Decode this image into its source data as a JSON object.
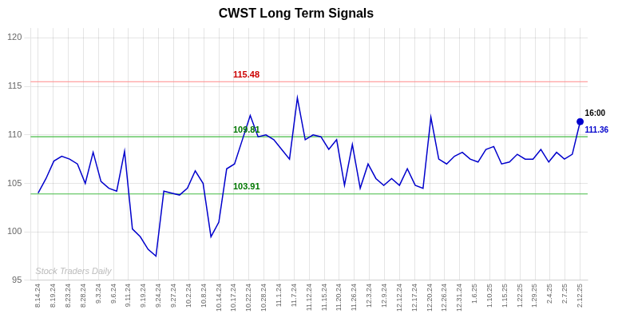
{
  "chart_data": {
    "type": "line",
    "title": "CWST Long Term Signals",
    "color": "#0000cc",
    "grid": true,
    "xlim": [
      -0.5,
      36.5
    ],
    "xticks": [
      {
        "value": 0,
        "label": "8.14.24"
      },
      {
        "value": 1,
        "label": "8.19.24"
      },
      {
        "value": 2,
        "label": "8.23.24"
      },
      {
        "value": 3,
        "label": "8.28.24"
      },
      {
        "value": 4,
        "label": "9.3.24"
      },
      {
        "value": 5,
        "label": "9.6.24"
      },
      {
        "value": 6,
        "label": "9.11.24"
      },
      {
        "value": 7,
        "label": "9.19.24"
      },
      {
        "value": 8,
        "label": "9.24.24"
      },
      {
        "value": 9,
        "label": "9.27.24"
      },
      {
        "value": 10,
        "label": "10.2.24"
      },
      {
        "value": 11,
        "label": "10.8.24"
      },
      {
        "value": 12,
        "label": "10.14.24"
      },
      {
        "value": 13,
        "label": "10.17.24"
      },
      {
        "value": 14,
        "label": "10.22.24"
      },
      {
        "value": 15,
        "label": "10.28.24"
      },
      {
        "value": 16,
        "label": "11.1.24"
      },
      {
        "value": 17,
        "label": "11.7.24"
      },
      {
        "value": 18,
        "label": "11.12.24"
      },
      {
        "value": 19,
        "label": "11.15.24"
      },
      {
        "value": 20,
        "label": "11.20.24"
      },
      {
        "value": 21,
        "label": "11.26.24"
      },
      {
        "value": 22,
        "label": "12.3.24"
      },
      {
        "value": 23,
        "label": "12.9.24"
      },
      {
        "value": 24,
        "label": "12.12.24"
      },
      {
        "value": 25,
        "label": "12.17.24"
      },
      {
        "value": 26,
        "label": "12.20.24"
      },
      {
        "value": 27,
        "label": "12.26.24"
      },
      {
        "value": 28,
        "label": "12.31.24"
      },
      {
        "value": 29,
        "label": "1.6.25"
      },
      {
        "value": 30,
        "label": "1.10.25"
      },
      {
        "value": 31,
        "label": "1.15.25"
      },
      {
        "value": 32,
        "label": "1.22.25"
      },
      {
        "value": 33,
        "label": "1.29.25"
      },
      {
        "value": 34,
        "label": "2.4.25"
      },
      {
        "value": 35,
        "label": "2.7.25"
      },
      {
        "value": 36,
        "label": "2.12.25"
      }
    ],
    "ylim": [
      95,
      121
    ],
    "yticks": [
      95,
      100,
      105,
      110,
      115,
      120
    ],
    "values": [
      104.0,
      105.5,
      107.3,
      107.8,
      107.5,
      107.0,
      105.0,
      108.2,
      105.2,
      104.5,
      104.2,
      108.3,
      100.3,
      99.5,
      98.2,
      97.5,
      104.2,
      104.0,
      103.8,
      104.5,
      106.3,
      105.0,
      99.5,
      101.0,
      106.5,
      107.0,
      109.5,
      112.0,
      109.8,
      110.0,
      109.5,
      108.5,
      107.5,
      113.8,
      109.5,
      110.0,
      109.8,
      108.5,
      109.5,
      104.8,
      109.0,
      104.5,
      107.0,
      105.5,
      104.8,
      105.5,
      104.8,
      106.5,
      104.8,
      104.5,
      111.8,
      107.5,
      107.0,
      107.8,
      108.2,
      107.5,
      107.2,
      108.5,
      108.8,
      107.0,
      107.2,
      108.0,
      107.5,
      107.5,
      108.5,
      107.2,
      108.2,
      107.5,
      108.0,
      111.36
    ],
    "hlines": [
      {
        "value": 115.48,
        "color": "#ff8888",
        "label": "115.48",
        "label_color": "#cc0000"
      },
      {
        "value": 109.81,
        "color": "#44bb44",
        "label": "109.81",
        "label_color": "#007700"
      },
      {
        "value": 103.91,
        "color": "#44bb44",
        "label": "103.91",
        "label_color": "#007700"
      }
    ],
    "last_point": {
      "label": "16:00",
      "value_label": "111.36",
      "color": "#0000cc"
    },
    "watermark": "Stock Traders Daily",
    "watermark_color": "#bbbbbb"
  }
}
